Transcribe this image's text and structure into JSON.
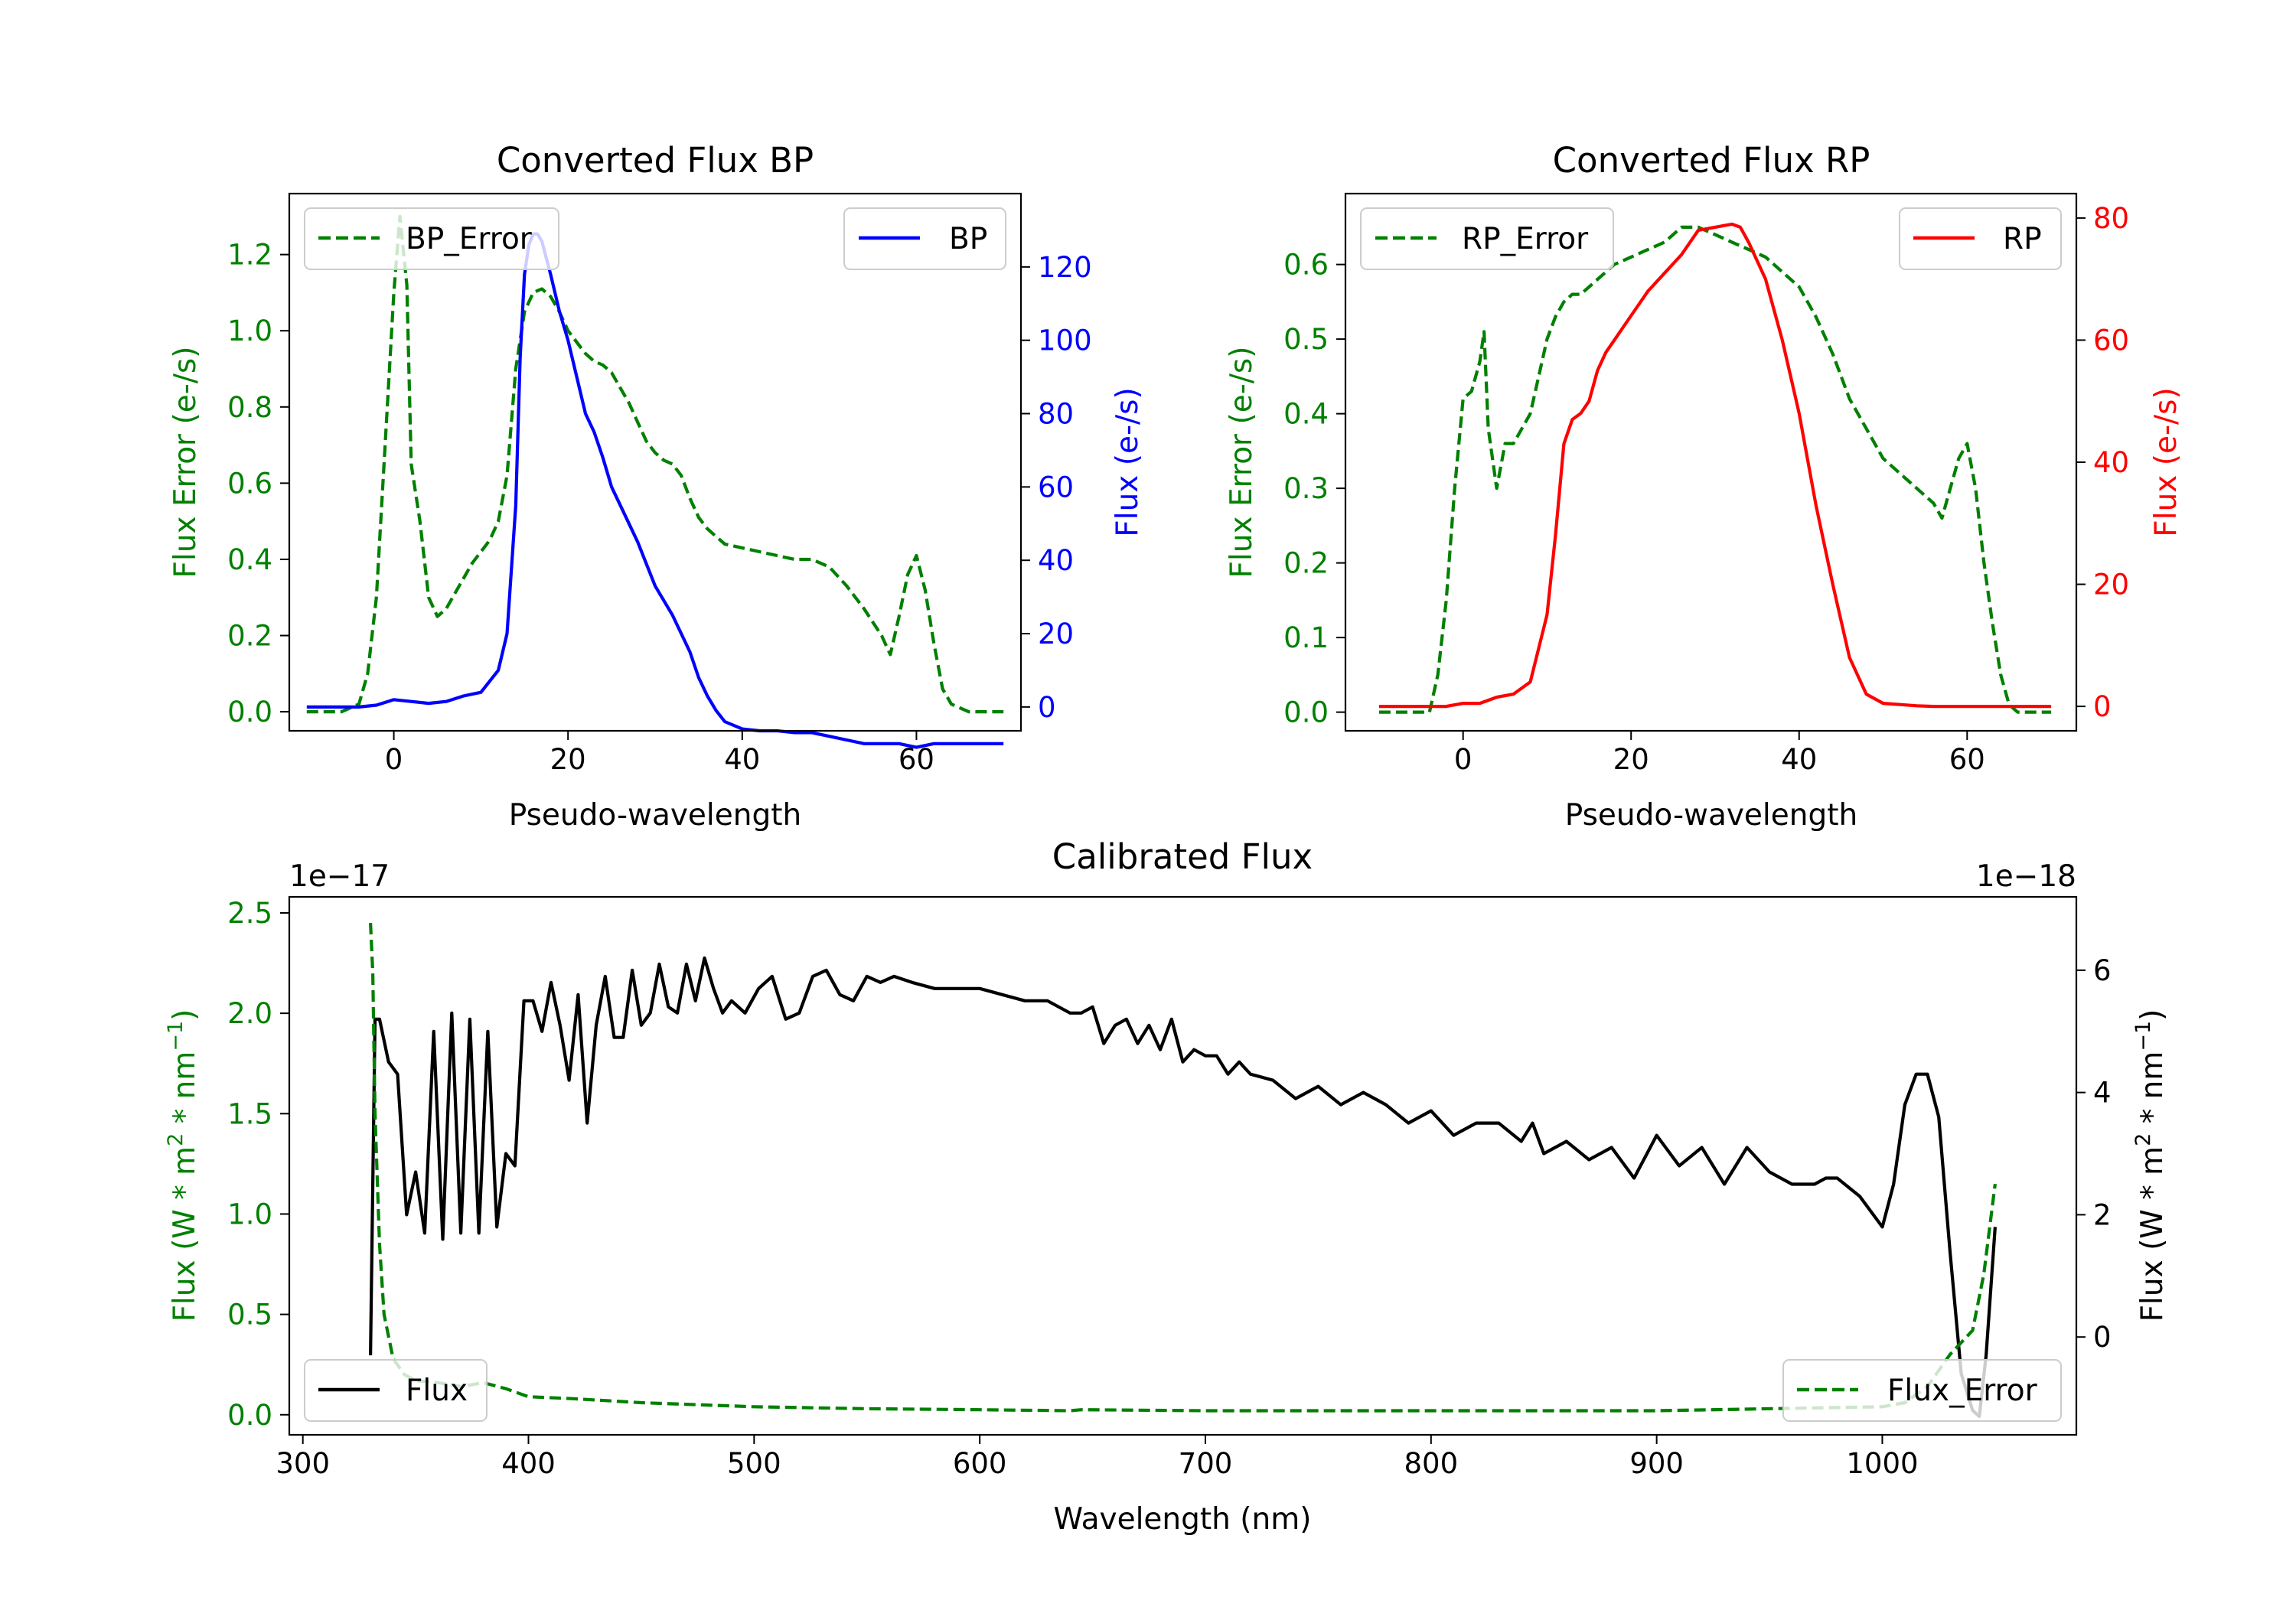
{
  "chart_data": [
    {
      "type": "line",
      "title": "Converted Flux BP",
      "xlabel": "Pseudo-wavelength",
      "ylabel_left": "Flux Error (e-/s)",
      "ylabel_right": "Flux (e-/s)",
      "xlim": [
        -12,
        72
      ],
      "ylim_left": [
        -0.05,
        1.36
      ],
      "ylim_right": [
        -6.5,
        140
      ],
      "xticks": [
        0,
        20,
        40,
        60
      ],
      "yticks_left": [
        0.0,
        0.2,
        0.4,
        0.6,
        0.8,
        1.0,
        1.2
      ],
      "yticks_right": [
        0,
        20,
        40,
        60,
        80,
        100,
        120
      ],
      "series": [
        {
          "name": "BP_Error",
          "axis": "left",
          "color": "#008000",
          "style": "dashed",
          "x": [
            -10,
            -6,
            -4,
            -3,
            -2,
            -1,
            0,
            0.7,
            1.5,
            2,
            3,
            4,
            5,
            6,
            7,
            8,
            9,
            10,
            11,
            12,
            13,
            14,
            15,
            16,
            17,
            18,
            19,
            20,
            21,
            22,
            23,
            24,
            25,
            26,
            27,
            28,
            29,
            30,
            31,
            32,
            33,
            34,
            35,
            36,
            37,
            38,
            40,
            42,
            44,
            46,
            48,
            50,
            52,
            54,
            56,
            57,
            58,
            59,
            60,
            61,
            62,
            63,
            64,
            66,
            68,
            70
          ],
          "values": [
            0.0,
            0.0,
            0.02,
            0.1,
            0.3,
            0.7,
            1.1,
            1.3,
            1.12,
            0.65,
            0.5,
            0.3,
            0.25,
            0.27,
            0.31,
            0.35,
            0.39,
            0.42,
            0.45,
            0.5,
            0.62,
            0.9,
            1.05,
            1.1,
            1.11,
            1.09,
            1.05,
            1.0,
            0.97,
            0.94,
            0.92,
            0.91,
            0.89,
            0.85,
            0.81,
            0.76,
            0.71,
            0.68,
            0.66,
            0.65,
            0.62,
            0.56,
            0.51,
            0.48,
            0.46,
            0.44,
            0.43,
            0.42,
            0.41,
            0.4,
            0.4,
            0.38,
            0.33,
            0.27,
            0.2,
            0.15,
            0.25,
            0.36,
            0.41,
            0.32,
            0.18,
            0.06,
            0.02,
            0.0,
            0.0,
            0.0
          ]
        },
        {
          "name": "BP",
          "axis": "right",
          "color": "#0000ff",
          "style": "solid",
          "x": [
            -10,
            -4,
            -2,
            0,
            2,
            4,
            6,
            8,
            10,
            12,
            13,
            14,
            14.5,
            15,
            15.5,
            16,
            16.5,
            17,
            18,
            19,
            20,
            21,
            22,
            23,
            24,
            25,
            26,
            28,
            30,
            32,
            34,
            35,
            36,
            37,
            38,
            40,
            42,
            44,
            46,
            48,
            50,
            52,
            54,
            56,
            58,
            60,
            62,
            64,
            66,
            68,
            70
          ],
          "values": [
            0,
            0,
            0.5,
            2,
            1.5,
            1,
            1.5,
            3,
            4,
            10,
            20,
            55,
            95,
            118,
            126,
            129,
            129,
            127,
            118,
            108,
            100,
            90,
            80,
            75,
            68,
            60,
            55,
            45,
            33,
            25,
            15,
            8,
            3,
            -1,
            -4,
            -6,
            -6.5,
            -6.5,
            -7,
            -7,
            -8,
            -9,
            -10,
            -10,
            -10,
            -11,
            -10,
            -10,
            -10,
            -10,
            -10
          ]
        }
      ],
      "legend": [
        {
          "label": "BP_Error",
          "location": "upper-left"
        },
        {
          "label": "BP",
          "location": "upper-right"
        }
      ]
    },
    {
      "type": "line",
      "title": "Converted Flux RP",
      "xlabel": "Pseudo-wavelength",
      "ylabel_left": "Flux Error (e-/s)",
      "ylabel_right": "Flux (e-/s)",
      "xlim": [
        -14,
        73
      ],
      "ylim_left": [
        -0.025,
        0.695
      ],
      "ylim_right": [
        -4,
        84
      ],
      "xticks": [
        0,
        20,
        40,
        60
      ],
      "yticks_left": [
        0.0,
        0.1,
        0.2,
        0.3,
        0.4,
        0.5,
        0.6
      ],
      "yticks_right": [
        0,
        20,
        40,
        60,
        80
      ],
      "series": [
        {
          "name": "RP_Error",
          "axis": "left",
          "color": "#008000",
          "style": "dashed",
          "x": [
            -10,
            -4,
            -3,
            -2,
            -1,
            0,
            1,
            2,
            2.5,
            3,
            4,
            5,
            6,
            7,
            8,
            9,
            10,
            11,
            12,
            13,
            14,
            16,
            18,
            20,
            22,
            24,
            26,
            28,
            30,
            32,
            34,
            36,
            38,
            40,
            42,
            44,
            46,
            48,
            50,
            52,
            54,
            56,
            57,
            58,
            59,
            60,
            61,
            62,
            63,
            64,
            65,
            66,
            68,
            70
          ],
          "values": [
            0.0,
            0.0,
            0.05,
            0.15,
            0.3,
            0.42,
            0.43,
            0.47,
            0.51,
            0.38,
            0.3,
            0.36,
            0.36,
            0.38,
            0.4,
            0.45,
            0.5,
            0.53,
            0.55,
            0.56,
            0.56,
            0.58,
            0.6,
            0.61,
            0.62,
            0.63,
            0.65,
            0.65,
            0.64,
            0.63,
            0.62,
            0.61,
            0.59,
            0.57,
            0.53,
            0.48,
            0.42,
            0.38,
            0.34,
            0.32,
            0.3,
            0.28,
            0.26,
            0.3,
            0.34,
            0.36,
            0.3,
            0.2,
            0.12,
            0.05,
            0.01,
            0.0,
            0.0,
            0.0
          ]
        },
        {
          "name": "RP",
          "axis": "right",
          "color": "#ff0000",
          "style": "solid",
          "x": [
            -10,
            -2,
            0,
            2,
            4,
            6,
            8,
            10,
            11,
            12,
            13,
            14,
            15,
            16,
            17,
            18,
            20,
            22,
            24,
            26,
            28,
            30,
            32,
            33,
            34,
            36,
            38,
            40,
            42,
            44,
            46,
            48,
            50,
            52,
            54,
            56,
            58,
            60,
            62,
            64,
            66,
            68,
            70
          ],
          "values": [
            0,
            0,
            0.5,
            0.5,
            1.5,
            2,
            4,
            15,
            28,
            43,
            47,
            48,
            50,
            55,
            58,
            60,
            64,
            68,
            71,
            74,
            78,
            78.5,
            79,
            78.5,
            76,
            70,
            60,
            48,
            33,
            20,
            8,
            2,
            0.5,
            0.3,
            0.1,
            0,
            0,
            0,
            0,
            0,
            0,
            0,
            0
          ]
        }
      ],
      "legend": [
        {
          "label": "RP_Error",
          "location": "upper-left"
        },
        {
          "label": "RP",
          "location": "upper-right"
        }
      ]
    },
    {
      "type": "line",
      "title": "Calibrated Flux",
      "xlabel": "Wavelength (nm)",
      "ylabel_left": "Flux (W * m$^2$ * nm$^{-1}$)",
      "ylabel_right": "Flux (W * m$^2$ * nm$^{-1}$)",
      "offset_left": "1e−17",
      "offset_right": "1e−18",
      "xlim": [
        294,
        1086
      ],
      "ylim_left": [
        -0.1,
        2.58
      ],
      "ylim_right": [
        -1.6,
        7.2
      ],
      "xticks": [
        300,
        400,
        500,
        600,
        700,
        800,
        900,
        1000
      ],
      "yticks_left": [
        0.0,
        0.5,
        1.0,
        1.5,
        2.0,
        2.5
      ],
      "yticks_right": [
        0,
        2,
        4,
        6
      ],
      "series": [
        {
          "name": "Flux",
          "axis": "right",
          "color": "#000000",
          "style": "solid",
          "x": [
            330,
            332,
            334,
            338,
            342,
            346,
            350,
            354,
            358,
            362,
            366,
            370,
            374,
            378,
            382,
            386,
            390,
            394,
            398,
            402,
            406,
            410,
            414,
            418,
            422,
            426,
            430,
            434,
            438,
            442,
            446,
            450,
            454,
            458,
            462,
            466,
            470,
            474,
            478,
            482,
            486,
            490,
            496,
            502,
            508,
            514,
            520,
            526,
            532,
            538,
            544,
            550,
            556,
            562,
            570,
            580,
            590,
            600,
            610,
            620,
            630,
            640,
            645,
            650,
            655,
            660,
            665,
            670,
            675,
            680,
            685,
            690,
            695,
            700,
            705,
            710,
            715,
            720,
            730,
            740,
            750,
            760,
            770,
            780,
            790,
            800,
            810,
            820,
            830,
            840,
            845,
            850,
            860,
            870,
            880,
            890,
            900,
            910,
            920,
            930,
            940,
            950,
            960,
            970,
            975,
            980,
            990,
            1000,
            1005,
            1010,
            1015,
            1020,
            1025,
            1030,
            1035,
            1040,
            1043,
            1046,
            1050
          ],
          "values": [
            -0.3,
            5.2,
            5.2,
            4.5,
            4.3,
            2,
            2.7,
            1.7,
            5,
            1.6,
            5.3,
            1.7,
            5.2,
            1.7,
            5,
            1.8,
            3,
            2.8,
            5.5,
            5.5,
            5,
            5.8,
            5.1,
            4.2,
            5.6,
            3.5,
            5.1,
            5.9,
            4.9,
            4.9,
            6,
            5.1,
            5.3,
            6.1,
            5.4,
            5.3,
            6.1,
            5.5,
            6.2,
            5.7,
            5.3,
            5.5,
            5.3,
            5.7,
            5.9,
            5.2,
            5.3,
            5.9,
            6,
            5.6,
            5.5,
            5.9,
            5.8,
            5.9,
            5.8,
            5.7,
            5.7,
            5.7,
            5.6,
            5.5,
            5.5,
            5.3,
            5.3,
            5.4,
            4.8,
            5.1,
            5.2,
            4.8,
            5.1,
            4.7,
            5.2,
            4.5,
            4.7,
            4.6,
            4.6,
            4.3,
            4.5,
            4.3,
            4.2,
            3.9,
            4.1,
            3.8,
            4,
            3.8,
            3.5,
            3.7,
            3.3,
            3.5,
            3.5,
            3.2,
            3.5,
            3,
            3.2,
            2.9,
            3.1,
            2.6,
            3.3,
            2.8,
            3.1,
            2.5,
            3.1,
            2.7,
            2.5,
            2.5,
            2.6,
            2.6,
            2.3,
            1.8,
            2.5,
            3.8,
            4.3,
            4.3,
            3.6,
            1.4,
            -0.6,
            -1.2,
            -1.3,
            -0.3,
            1.8
          ]
        },
        {
          "name": "Flux_Error",
          "axis": "left",
          "color": "#008000",
          "style": "dashed",
          "x": [
            330,
            331,
            332,
            334,
            336,
            340,
            345,
            350,
            360,
            370,
            380,
            390,
            400,
            420,
            450,
            500,
            550,
            600,
            640,
            645,
            700,
            800,
            900,
            1000,
            1010,
            1020,
            1030,
            1040,
            1045,
            1050
          ],
          "values": [
            2.45,
            2.2,
            1.5,
            0.85,
            0.5,
            0.28,
            0.2,
            0.17,
            0.16,
            0.14,
            0.16,
            0.13,
            0.09,
            0.08,
            0.06,
            0.04,
            0.03,
            0.025,
            0.02,
            0.025,
            0.02,
            0.02,
            0.02,
            0.04,
            0.06,
            0.14,
            0.3,
            0.42,
            0.7,
            1.15
          ]
        }
      ],
      "legend": [
        {
          "label": "Flux",
          "location": "lower-left"
        },
        {
          "label": "Flux_Error",
          "location": "lower-right"
        }
      ]
    }
  ]
}
